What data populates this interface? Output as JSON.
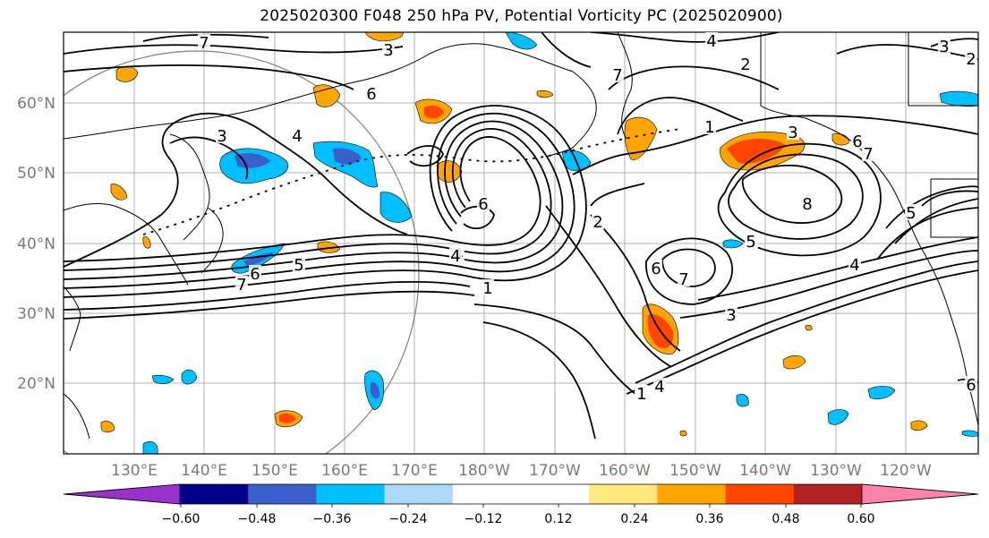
{
  "title": "2025020300 F048 250 hPa PV, Potential Vorticity PC (2025020900)",
  "map": {
    "lat_labels": [
      "60°N",
      "50°N",
      "40°N",
      "30°N",
      "20°N"
    ],
    "lon_labels": [
      "130°E",
      "140°E",
      "150°E",
      "160°E",
      "170°E",
      "180°W",
      "170°W",
      "160°W",
      "150°W",
      "140°W",
      "130°W",
      "120°W"
    ],
    "contour_labels": [
      "7",
      "4",
      "2",
      "3",
      "4",
      "6",
      "3",
      "7",
      "1",
      "6",
      "2",
      "8",
      "7",
      "5",
      "6",
      "4",
      "5",
      "6",
      "7",
      "1",
      "3",
      "4",
      "5",
      "6",
      "7",
      "1",
      "4",
      "3",
      "5",
      "6",
      "1",
      "4",
      "3",
      "2"
    ],
    "projection_circle": true,
    "gridlines": true,
    "coastlines": true
  },
  "colorbar": {
    "colors": [
      "#9932cc",
      "#00008b",
      "#3a5fcd",
      "#00bfff",
      "#add8f6",
      "#ffffff",
      "#ffffff",
      "#ffe87c",
      "#ffa500",
      "#ff4500",
      "#b22222",
      "#ff82ab"
    ],
    "tick_labels": [
      "−0.60",
      "−0.48",
      "−0.36",
      "−0.24",
      "−0.12",
      "0.12",
      "0.24",
      "0.36",
      "0.48",
      "0.60"
    ]
  }
}
